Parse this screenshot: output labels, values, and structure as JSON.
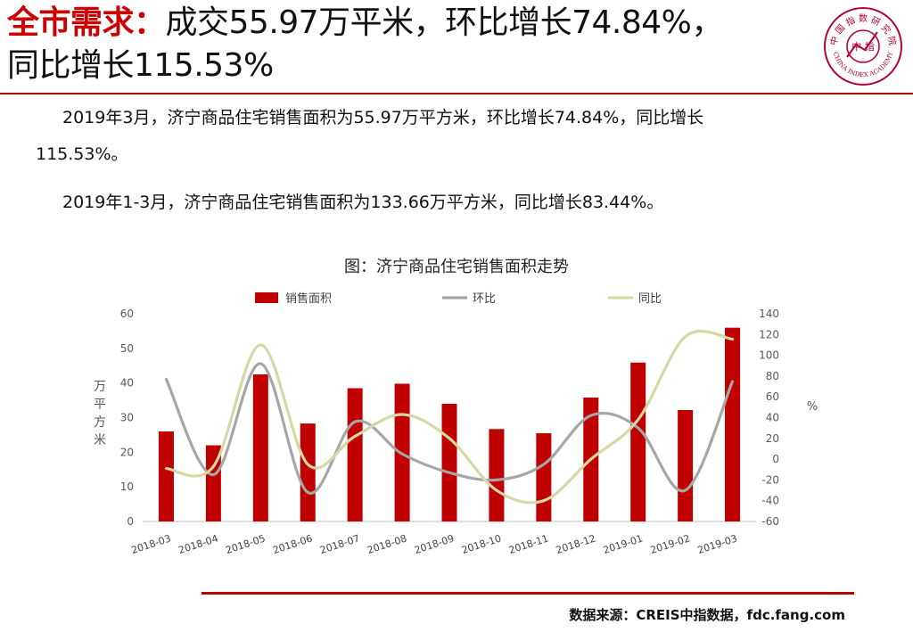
{
  "header": {
    "title_highlight": "全市需求：",
    "title_line1_rest": "成交55.97万平米，环比增长74.84%，",
    "title_line2": "同比增长115.53%"
  },
  "logo": {
    "icon": "china-index-academy-seal",
    "top_text": "中 国 指 数 研 究 院",
    "center_text": "中 指",
    "bottom_text": "CHINA INDEX ACADEMY",
    "color": "#b5003a"
  },
  "body": {
    "para1_line1": "2019年3月，济宁商品住宅销售面积为55.97万平方米，环比增长74.84%，同比增长",
    "para1_line2": "115.53%。",
    "para2": "2019年1-3月，济宁商品住宅销售面积为133.66万平方米，同比增长83.44%。"
  },
  "chart_title": "图：济宁商品住宅销售面积走势",
  "chart_data": {
    "type": "bar",
    "categories": [
      "2018-03",
      "2018-04",
      "2018-05",
      "2018-06",
      "2018-07",
      "2018-08",
      "2018-09",
      "2018-10",
      "2018-11",
      "2018-12",
      "2019-01",
      "2019-02",
      "2019-03"
    ],
    "series": [
      {
        "name": "销售面积",
        "type": "bar",
        "axis": "left",
        "color": "#c00000",
        "values": [
          26,
          22,
          42.5,
          28.3,
          38.5,
          39.8,
          34,
          26.7,
          25.5,
          35.8,
          45.9,
          32.2,
          55.97
        ]
      },
      {
        "name": "环比",
        "type": "line",
        "smooth": true,
        "axis": "right",
        "color": "#a6a6a6",
        "values": [
          77,
          -15,
          92,
          -32,
          36,
          5,
          -13,
          -20,
          -5,
          42,
          30,
          -30,
          74.84
        ]
      },
      {
        "name": "同比",
        "type": "line",
        "smooth": true,
        "axis": "right",
        "color": "#d5d7a4",
        "values": [
          -9,
          -7,
          110,
          -5,
          22,
          43,
          20,
          -30,
          -40,
          0,
          38,
          118,
          115.53
        ]
      }
    ],
    "ylabel_left": "万平方米",
    "ylabel_right": "%",
    "ylim_left": [
      0,
      60
    ],
    "yticks_left": [
      0,
      10,
      20,
      30,
      40,
      50,
      60
    ],
    "ylim_right": [
      -60,
      140
    ],
    "yticks_right": [
      -60,
      -40,
      -20,
      0,
      20,
      40,
      60,
      80,
      100,
      120,
      140
    ],
    "legend_position": "top",
    "grid": false
  },
  "source": "数据来源：CREIS中指数据，fdc.fang.com"
}
